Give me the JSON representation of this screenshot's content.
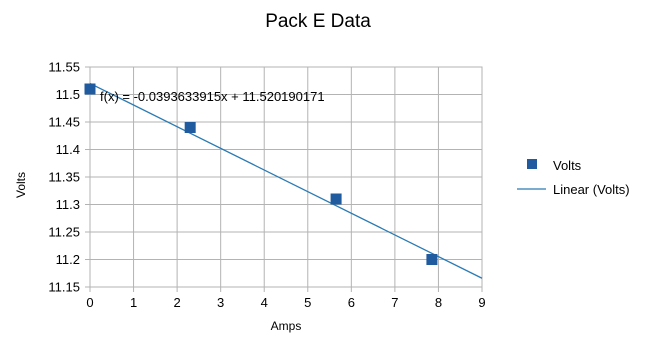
{
  "chart_data": {
    "type": "scatter",
    "title": "Pack E Data",
    "xlabel": "Amps",
    "ylabel": "Volts",
    "xlim": [
      0,
      9
    ],
    "ylim": [
      11.15,
      11.55
    ],
    "x_ticks": [
      0,
      1,
      2,
      3,
      4,
      5,
      6,
      7,
      8,
      9
    ],
    "y_ticks": [
      11.15,
      11.2,
      11.25,
      11.3,
      11.35,
      11.4,
      11.45,
      11.5,
      11.55
    ],
    "x_tick_labels": [
      "0",
      "1",
      "2",
      "3",
      "4",
      "5",
      "6",
      "7",
      "8",
      "9"
    ],
    "y_tick_labels": [
      "11.15",
      "11.2",
      "11.25",
      "11.3",
      "11.35",
      "11.4",
      "11.45",
      "11.5",
      "11.55"
    ],
    "grid": true,
    "legend_position": "right",
    "series": [
      {
        "name": "Volts",
        "marker": "square",
        "color": "#1f5b9e",
        "x": [
          0,
          2.3,
          5.65,
          7.85
        ],
        "y": [
          11.51,
          11.44,
          11.31,
          11.2
        ]
      }
    ],
    "trendline": {
      "name": "Linear (Volts)",
      "type": "linear",
      "slope": -0.0393633915,
      "intercept": 11.520190171,
      "color": "#2a7ab4",
      "equation": "f(x) = -0.0393633915x + 11.520190171"
    },
    "colors": {
      "grid": "#b3b3b3",
      "axis": "#b3b3b3",
      "marker": "#1f5b9e",
      "line": "#2a7ab4"
    }
  }
}
